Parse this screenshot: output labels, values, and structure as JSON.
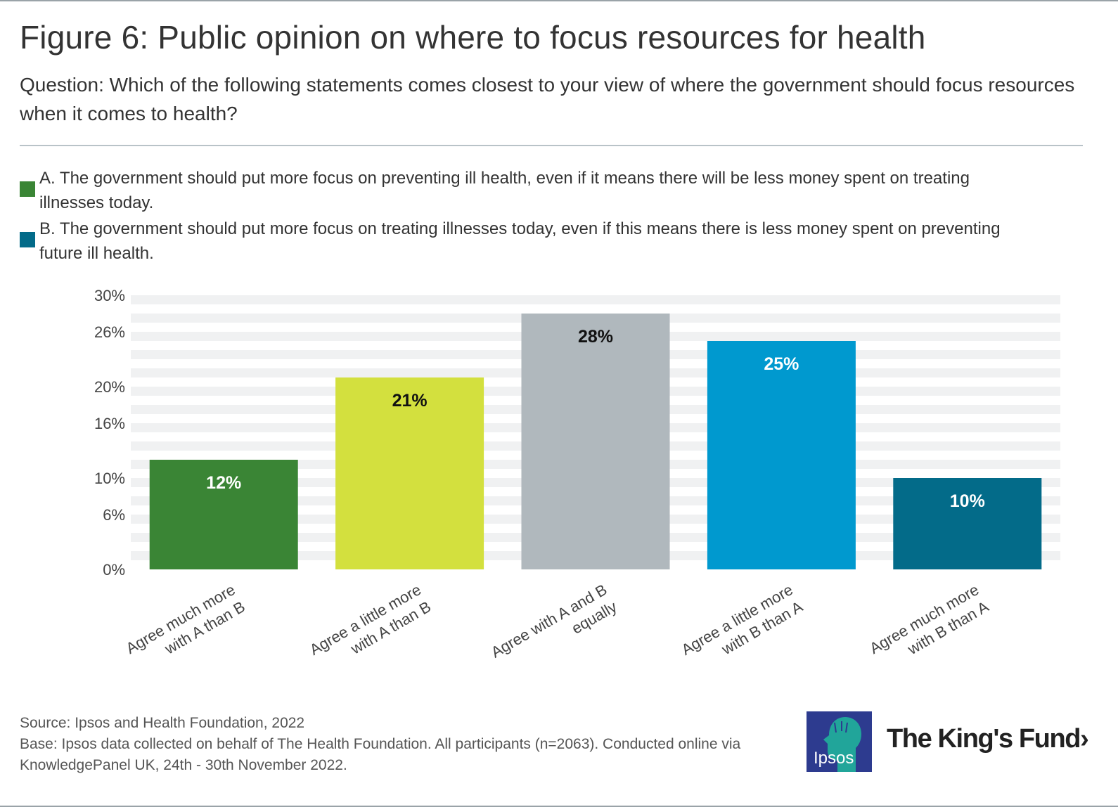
{
  "title": "Figure 6: Public opinion on where to focus resources for health",
  "question": "Question: Which of the following statements comes closest to your view of where the government should focus resources when it comes to health?",
  "legend": [
    {
      "text": "A. The government should put more focus on preventing ill health, even if it means there will be less money spent on treating illnesses today.",
      "color": "#3a8535"
    },
    {
      "text": "B. The government should put more focus on treating illnesses today, even if this means there is less money spent on preventing future ill health.",
      "color": "#036b89"
    }
  ],
  "chart_data": {
    "type": "bar",
    "categories": [
      [
        "Agree much more",
        "with A than B"
      ],
      [
        "Agree a little more",
        "with A than B"
      ],
      [
        "Agree with A and B",
        "equally"
      ],
      [
        "Agree a little more",
        "with B than A"
      ],
      [
        "Agree much more",
        "with B than A"
      ]
    ],
    "values": [
      12,
      21,
      28,
      25,
      10
    ],
    "value_labels": [
      "12%",
      "21%",
      "28%",
      "25%",
      "10%"
    ],
    "colors": [
      "#3a8535",
      "#d3e03e",
      "#b0b8bd",
      "#0099cf",
      "#036b89"
    ],
    "label_colors": [
      "#ffffff",
      "#111111",
      "#111111",
      "#ffffff",
      "#ffffff"
    ],
    "yticks": [
      0,
      6,
      10,
      16,
      20,
      26,
      30
    ],
    "ytick_labels": [
      "0%",
      "6%",
      "10%",
      "16%",
      "20%",
      "26%",
      "30%"
    ],
    "ylim": [
      0,
      30
    ],
    "gridlines": true,
    "title": "",
    "xlabel": "",
    "ylabel": ""
  },
  "footer": {
    "source": "Source: Ipsos and Health Foundation, 2022",
    "base": "Base: Ipsos data collected on behalf of The Health Foundation. All participants (n=2063). Conducted online via KnowledgePanel UK, 24th - 30th November 2022."
  },
  "logos": {
    "ipsos": "Ipsos",
    "kingsfund": "The King's Fund"
  }
}
